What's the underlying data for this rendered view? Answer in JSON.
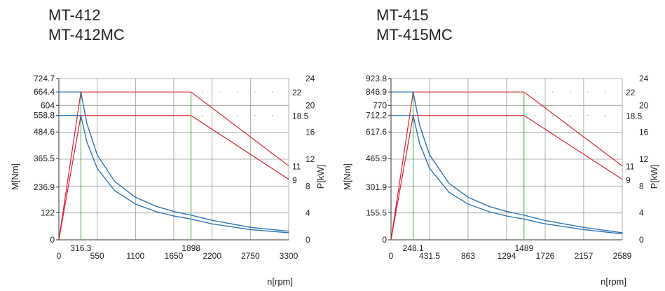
{
  "charts": [
    {
      "model_line1": "MT-412",
      "model_line2": "MT-412MC",
      "ylabel_left": "M[Nm]",
      "ylabel_right": "P[kW]",
      "xlabel": "n[rpm]"
    },
    {
      "model_line1": "MT-415",
      "model_line2": "MT-415MC",
      "ylabel_left": "M[Nm]",
      "ylabel_right": "P[kW]",
      "xlabel": "n[rpm]"
    }
  ],
  "colors": {
    "torque": "#2e74b5",
    "power": "#d9232e",
    "marker": "#3aa845",
    "grid": "#9a9a9a",
    "axis": "#333333"
  },
  "chart_data": [
    {
      "type": "line",
      "title": "MT-412 / MT-412MC",
      "xlabel": "n[rpm]",
      "ylabel": "M[Nm]",
      "ylabel_right": "P[kW]",
      "xlim": [
        0,
        3300
      ],
      "ylim": [
        0,
        724.7
      ],
      "ylim_right": [
        0,
        24
      ],
      "x_ticks": [
        "0",
        "550",
        "1100",
        "1650",
        "2200",
        "2750",
        "3300"
      ],
      "x_tick_values": [
        0,
        550,
        1100,
        1650,
        2200,
        2750,
        3300
      ],
      "x_special_ticks": [
        "316.3",
        "1898"
      ],
      "x_special_values": [
        316.3,
        1898
      ],
      "y_ticks": [
        "0",
        "122",
        "236.9",
        "365.5",
        "484.6",
        "558.8",
        "604",
        "664.4",
        "724.7"
      ],
      "y_tick_values": [
        0,
        122,
        236.9,
        365.5,
        484.6,
        558.8,
        604,
        664.4,
        724.7
      ],
      "y_right_ticks": [
        "0",
        "4",
        "8",
        "12",
        "16",
        "20",
        "24"
      ],
      "y_right_tick_values": [
        0,
        4,
        8,
        12,
        16,
        20,
        24
      ],
      "y_right_special_ticks": [
        "9",
        "11",
        "18.5",
        "22"
      ],
      "y_right_special_values": [
        9,
        11,
        18.5,
        22
      ],
      "grid": true,
      "series": [
        {
          "kind": "torque",
          "peak_torque": 664.4,
          "corner": 316.3,
          "x": [
            316.3,
            400,
            550,
            800,
            1100,
            1400,
            1650,
            1898,
            2200,
            2750,
            3300
          ],
          "values": [
            664.4,
            525.3,
            382.1,
            262.7,
            191.0,
            150.1,
            127.3,
            110.7,
            87.5,
            56.0,
            38.9
          ]
        },
        {
          "kind": "torque",
          "peak_torque": 558.8,
          "corner": 316.3,
          "x": [
            316.3,
            400,
            550,
            800,
            1100,
            1400,
            1650,
            1898,
            2200,
            2750,
            3300
          ],
          "values": [
            558.8,
            441.9,
            321.3,
            220.9,
            160.7,
            126.2,
            107.1,
            93.1,
            71.6,
            45.8,
            31.8
          ]
        },
        {
          "kind": "power",
          "peak": 22,
          "x": [
            0,
            316.3,
            1898,
            3300
          ],
          "values": [
            0,
            22,
            22,
            11
          ]
        },
        {
          "kind": "power",
          "peak": 18.5,
          "x": [
            0,
            316.3,
            1898,
            3300
          ],
          "values": [
            0,
            18.5,
            18.5,
            9
          ]
        }
      ]
    },
    {
      "type": "line",
      "title": "MT-415 / MT-415MC",
      "xlabel": "n[rpm]",
      "ylabel": "M[Nm]",
      "ylabel_right": "P[kW]",
      "xlim": [
        0,
        2589
      ],
      "ylim": [
        0,
        923.8
      ],
      "ylim_right": [
        0,
        24
      ],
      "x_ticks": [
        "0",
        "431.5",
        "863",
        "1294",
        "1726",
        "2157",
        "2589"
      ],
      "x_tick_values": [
        0,
        431.5,
        863,
        1294,
        1726,
        2157,
        2589
      ],
      "x_special_ticks": [
        "248.1",
        "1489"
      ],
      "x_special_values": [
        248.1,
        1489
      ],
      "y_ticks": [
        "0",
        "155.5",
        "301.9",
        "465.9",
        "617.6",
        "712.2",
        "770",
        "846.9",
        "923.8"
      ],
      "y_tick_values": [
        0,
        155.5,
        301.9,
        465.9,
        617.6,
        712.2,
        770,
        846.9,
        923.8
      ],
      "y_right_ticks": [
        "0",
        "4",
        "8",
        "12",
        "16",
        "20",
        "24"
      ],
      "y_right_tick_values": [
        0,
        4,
        8,
        12,
        16,
        20,
        24
      ],
      "y_right_special_ticks": [
        "9",
        "11",
        "18.5",
        "22"
      ],
      "y_right_special_values": [
        9,
        11,
        18.5,
        22
      ],
      "grid": true,
      "series": [
        {
          "kind": "torque",
          "peak_torque": 846.9,
          "corner": 248.1,
          "x": [
            248.1,
            320,
            431.5,
            650,
            863,
            1100,
            1294,
            1489,
            1726,
            2157,
            2589
          ],
          "values": [
            846.9,
            656.6,
            486.9,
            323.2,
            243.5,
            191.0,
            162.4,
            141.1,
            110.7,
            71.1,
            40.6
          ]
        },
        {
          "kind": "torque",
          "peak_torque": 712.2,
          "corner": 248.1,
          "x": [
            248.1,
            320,
            431.5,
            650,
            863,
            1100,
            1294,
            1489,
            1726,
            2157,
            2589
          ],
          "values": [
            712.2,
            552.1,
            409.4,
            271.8,
            204.7,
            160.6,
            136.5,
            118.6,
            91.4,
            58.6,
            34.0
          ]
        },
        {
          "kind": "power",
          "peak": 22,
          "x": [
            0,
            248.1,
            1489,
            2589
          ],
          "values": [
            0,
            22,
            22,
            11
          ]
        },
        {
          "kind": "power",
          "peak": 18.5,
          "x": [
            0,
            248.1,
            1489,
            2589
          ],
          "values": [
            0,
            18.5,
            18.5,
            9
          ]
        }
      ]
    }
  ]
}
